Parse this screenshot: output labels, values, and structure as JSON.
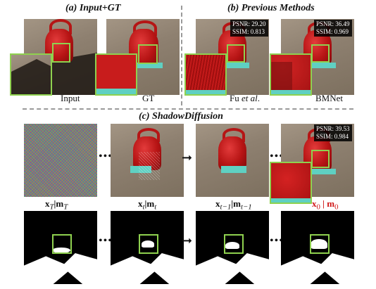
{
  "sections": {
    "a_title": "(a) Input+GT",
    "b_title": "(b) Previous Methods",
    "c_title": "(c) ShadowDiffusion"
  },
  "captions": {
    "input": "Input",
    "gt": "GT",
    "fu_prefix": "Fu ",
    "fu_italic": "et al",
    "fu_suffix": ".",
    "bmnet": "BMNet",
    "x_t_cap": "x",
    "x_t_sub": "T",
    "m_t_cap": "|m",
    "m_t_sub": "T",
    "x_small_t": "x",
    "x_small_t_sub": "t",
    "m_small_t": "|m",
    "m_small_t_sub": "t",
    "x_t1": "x",
    "x_t1_sub": "t−1",
    "m_t1": "|m",
    "m_t1_sub": "t−1",
    "x_0": "x",
    "x_0_sub": "0",
    "m_0": " | m",
    "m_0_sub": "0"
  },
  "metrics": {
    "fu": {
      "psnr": "PSNR: 29.20",
      "ssim": "SSIM: 0.813"
    },
    "bmnet": {
      "psnr": "PSNR: 36.49",
      "ssim": "SSIM: 0.969"
    },
    "shadowdiffusion": {
      "psnr": "PSNR: 39.53",
      "ssim": "SSIM: 0.984"
    }
  },
  "symbols": {
    "dots": "•••",
    "arrow": "➞"
  },
  "colors": {
    "highlight_box": "#8fd14f",
    "final_caption": "#d01818"
  }
}
